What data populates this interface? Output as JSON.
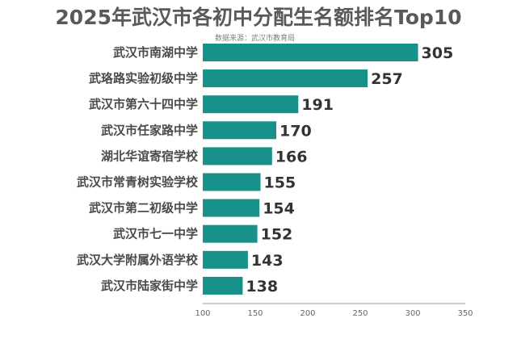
{
  "title": "2025年武汉市各初中分配生名额排名Top10",
  "source": "数据来源：武汉市教育局",
  "colors": {
    "bar": "#17918a",
    "axis": "#999999"
  },
  "chart_data": {
    "type": "bar",
    "orientation": "horizontal",
    "title": "2025年武汉市各初中分配生名额排名Top10",
    "categories": [
      "武汉市南湖中学",
      "武珞路实验初级中学",
      "武汉市第六十四中学",
      "武汉市任家路中学",
      "湖北华谊寄宿学校",
      "武汉市常青树实验学校",
      "武汉市第二初级中学",
      "武汉市七一中学",
      "武汉大学附属外语学校",
      "武汉市陆家街中学"
    ],
    "values": [
      305,
      257,
      191,
      170,
      166,
      155,
      154,
      152,
      143,
      138
    ],
    "xlim": [
      100,
      350
    ],
    "xticks": [
      100,
      150,
      200,
      250,
      300,
      350
    ],
    "grid": false,
    "legend": "none"
  }
}
